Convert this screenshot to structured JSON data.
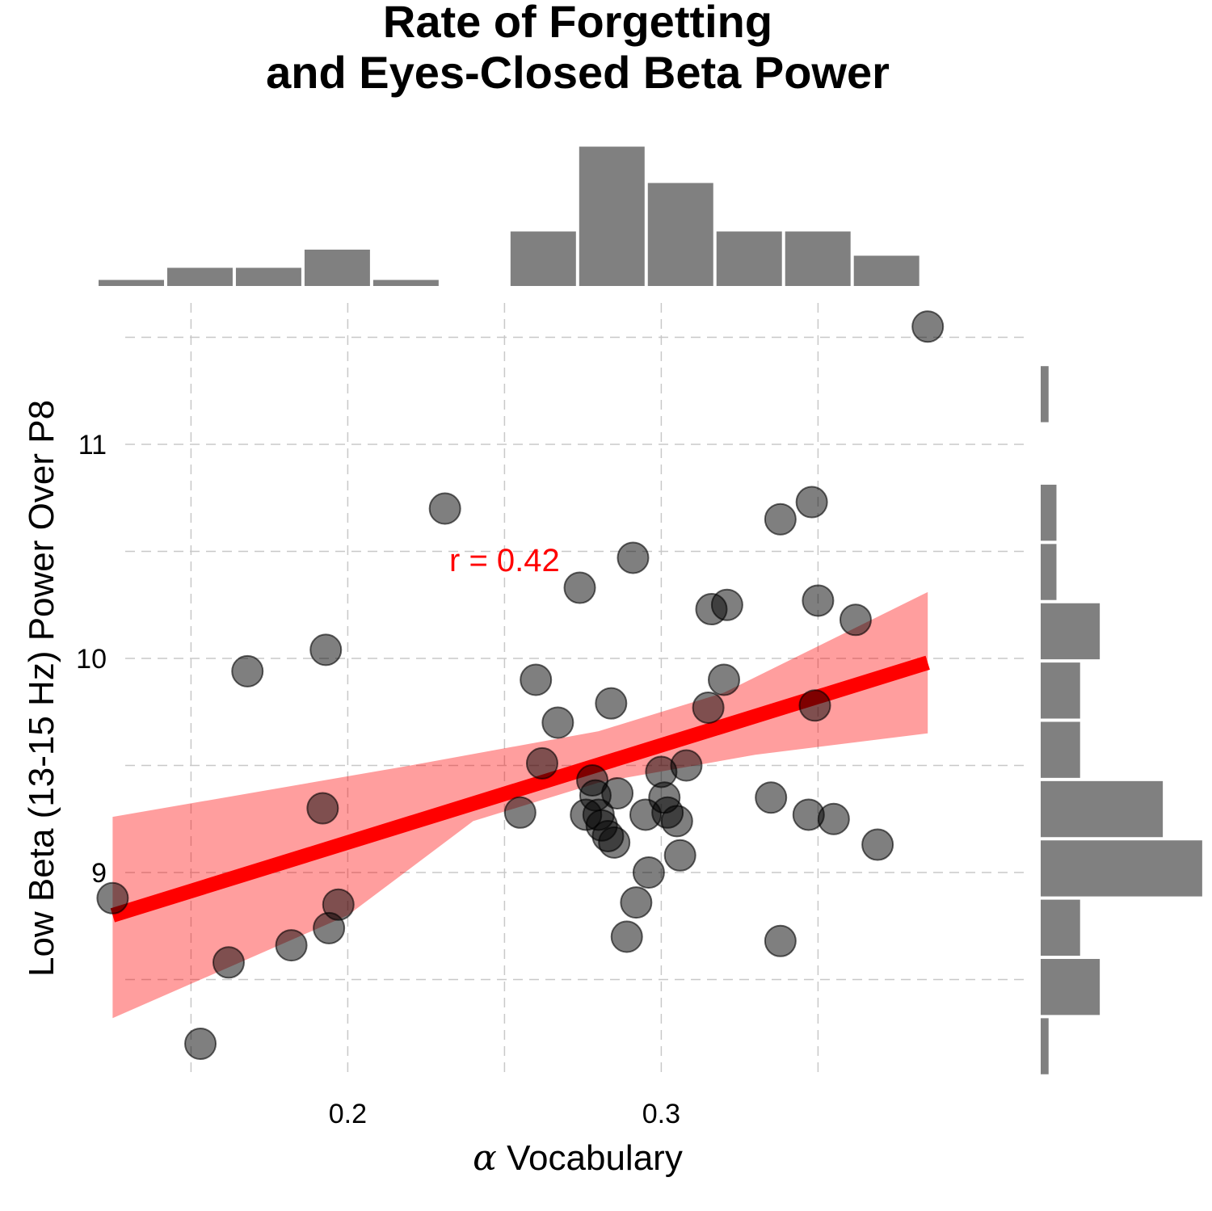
{
  "chart_data": {
    "type": "scatter",
    "title_lines": [
      "Rate of Forgetting",
      "and Eyes-Closed Beta Power"
    ],
    "xlabel_symbol": "α",
    "xlabel_text": " Vocabulary",
    "ylabel": "Low Beta (13-15 Hz) Power Over P8",
    "xlim": [
      0.12,
      0.39
    ],
    "ylim": [
      8.05,
      11.65
    ],
    "x_ticks": [
      0.2,
      0.3
    ],
    "x_tick_labels": [
      "0.2",
      "0.3"
    ],
    "x_minor_grid": [
      0.15,
      0.25,
      0.35
    ],
    "y_ticks": [
      9,
      10,
      11
    ],
    "y_tick_labels": [
      "9",
      "10",
      "11"
    ],
    "y_minor_grid": [
      8.5,
      9.5,
      10.5,
      11.5
    ],
    "grid": true,
    "annotation": {
      "text": "r = 0.42",
      "x": 0.25,
      "y": 10.46,
      "color": "#ff0000"
    },
    "regression": {
      "line": [
        [
          0.125,
          8.8
        ],
        [
          0.385,
          9.98
        ]
      ],
      "ci_upper": [
        [
          0.125,
          9.26
        ],
        [
          0.22,
          9.5
        ],
        [
          0.28,
          9.66
        ],
        [
          0.32,
          9.84
        ],
        [
          0.385,
          10.31
        ]
      ],
      "ci_lower": [
        [
          0.125,
          8.32
        ],
        [
          0.2,
          8.8
        ],
        [
          0.24,
          9.24
        ],
        [
          0.28,
          9.42
        ],
        [
          0.33,
          9.55
        ],
        [
          0.385,
          9.65
        ]
      ],
      "color": "#ff0000"
    },
    "points": [
      [
        0.125,
        8.88
      ],
      [
        0.153,
        8.2
      ],
      [
        0.162,
        8.58
      ],
      [
        0.168,
        9.94
      ],
      [
        0.182,
        8.66
      ],
      [
        0.192,
        9.3
      ],
      [
        0.193,
        10.04
      ],
      [
        0.194,
        8.74
      ],
      [
        0.197,
        8.85
      ],
      [
        0.231,
        10.7
      ],
      [
        0.255,
        9.28
      ],
      [
        0.26,
        9.9
      ],
      [
        0.262,
        9.51
      ],
      [
        0.267,
        9.7
      ],
      [
        0.274,
        10.33
      ],
      [
        0.276,
        9.27
      ],
      [
        0.278,
        9.43
      ],
      [
        0.279,
        9.36
      ],
      [
        0.28,
        9.27
      ],
      [
        0.281,
        9.22
      ],
      [
        0.283,
        9.17
      ],
      [
        0.284,
        9.79
      ],
      [
        0.285,
        9.14
      ],
      [
        0.286,
        9.37
      ],
      [
        0.289,
        8.7
      ],
      [
        0.291,
        10.47
      ],
      [
        0.292,
        8.86
      ],
      [
        0.295,
        9.27
      ],
      [
        0.296,
        9.0
      ],
      [
        0.3,
        9.47
      ],
      [
        0.301,
        9.35
      ],
      [
        0.302,
        9.28
      ],
      [
        0.305,
        9.24
      ],
      [
        0.306,
        9.08
      ],
      [
        0.308,
        9.5
      ],
      [
        0.315,
        9.77
      ],
      [
        0.316,
        10.23
      ],
      [
        0.32,
        9.9
      ],
      [
        0.321,
        10.25
      ],
      [
        0.335,
        9.35
      ],
      [
        0.338,
        10.65
      ],
      [
        0.338,
        8.68
      ],
      [
        0.347,
        9.27
      ],
      [
        0.348,
        10.73
      ],
      [
        0.349,
        9.78
      ],
      [
        0.35,
        10.27
      ],
      [
        0.355,
        9.25
      ],
      [
        0.362,
        10.18
      ],
      [
        0.369,
        9.13
      ],
      [
        0.385,
        11.55
      ]
    ],
    "top_histogram": {
      "bin_start": 0.12,
      "bin_width": 0.0219,
      "counts": [
        0.5,
        1.5,
        1.5,
        3,
        0.5,
        0,
        4.5,
        11.5,
        8.5,
        4.5,
        4.5,
        2.5
      ]
    },
    "right_histogram": {
      "bin_start": 8.05,
      "bin_width": 0.2769,
      "counts": [
        1,
        7.5,
        5,
        20.5,
        15.5,
        5,
        5,
        7.5,
        2,
        2,
        0,
        1
      ]
    }
  }
}
